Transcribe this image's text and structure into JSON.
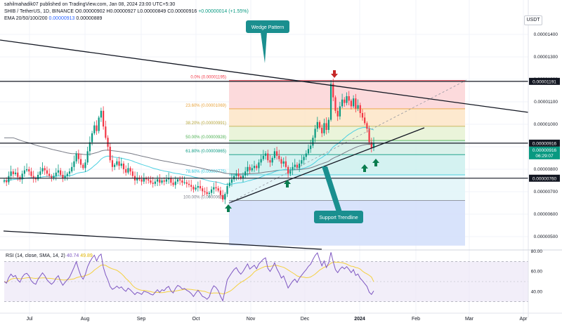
{
  "header": {
    "published": "sahilmahadik07 published on TradingView.com, Jan 08, 2024 23:00 UTC+5:30",
    "symbol": "SHIB / TetherUS, 1D, BINANCE",
    "ohlc": "O0.00000902 H0.00000927 L0.00000849 C0.00000916",
    "change": "+0.00000014 (+1.55%)",
    "ema_label": "EMA 20/50/100/200",
    "ema_v1": "0.00000913",
    "ema_v2": "0.00000889"
  },
  "quote_currency": "USDT",
  "colors": {
    "up": "#089981",
    "down": "#f23645",
    "ema_cyan": "#4dd0e1",
    "ema_gray": "#787b86",
    "callout": "#1a8f8f",
    "arrow_green": "#0a7d4f",
    "arrow_red": "#c62828",
    "rsi_line": "#7e57c2",
    "rsi_ma": "#f4d03f"
  },
  "callouts": {
    "wedge": "Wedge Pattern",
    "support": "Support Trendline"
  },
  "fib_labels": [
    {
      "text": "0.0% (0.00001195)",
      "price": 11.95
    },
    {
      "text": "23.60% (0.00001069)",
      "price": 10.69
    },
    {
      "text": "38.20% (0.00000991)",
      "price": 9.91
    },
    {
      "text": "50.00% (0.00000928)",
      "price": 9.28
    },
    {
      "text": "61.80% (0.00000865)",
      "price": 8.65
    },
    {
      "text": "78.60% (0.00000775)",
      "price": 7.75
    },
    {
      "text": "100.00% (0.00000661)",
      "price": 6.61
    }
  ],
  "price_badges": [
    {
      "text": "0.00001191",
      "price": 11.91
    },
    {
      "text": "0.00000916",
      "price": 9.16
    },
    {
      "text": "0.00000760",
      "price": 7.6
    }
  ],
  "last_price_badge": {
    "price": "0.00000916",
    "countdown": "06:29:07"
  },
  "rsi_legend": {
    "label": "RSI (14, close, SMA, 14, 2)",
    "v1": "40.74",
    "v2": "49.89"
  },
  "chart_data": {
    "type": "candlestick",
    "title": "SHIB / TetherUS, 1D, BINANCE",
    "price_unit": "1e-8 USDT (axis labels show 0.000000XX)",
    "ylim": [
      4.6,
      15.0
    ],
    "ytick_values": [
      14.0,
      13.0,
      12.0,
      11.0,
      10.0,
      9.0,
      8.0,
      7.0,
      6.0,
      5.0
    ],
    "ytick_labels": [
      "0.00001400",
      "0.00001300",
      "0.00001200",
      "0.00001100",
      "0.00001000",
      "0.00000900",
      "0.00000800",
      "0.00000700",
      "0.00000600",
      "0.00000500"
    ],
    "xtick_labels": [
      "Jul",
      "Aug",
      "Sep",
      "Oct",
      "Nov",
      "Dec",
      "2024",
      "Feb",
      "Mar",
      "Apr"
    ],
    "candles_close": [
      7.5,
      7.42,
      7.7,
      7.9,
      7.78,
      7.85,
      7.65,
      7.55,
      7.8,
      7.95,
      8.0,
      7.9,
      7.7,
      7.6,
      7.55,
      7.75,
      7.9,
      8.05,
      7.95,
      7.8,
      7.7,
      7.62,
      7.7,
      7.85,
      7.95,
      7.75,
      7.6,
      7.7,
      7.8,
      7.9,
      8.1,
      8.35,
      8.7,
      8.45,
      8.2,
      8.05,
      8.3,
      8.8,
      9.2,
      9.6,
      9.95,
      9.7,
      10.3,
      10.6,
      9.9,
      9.4,
      9.0,
      8.4,
      8.1,
      8.2,
      8.35,
      8.15,
      8.25,
      8.0,
      7.85,
      8.05,
      7.9,
      7.7,
      7.5,
      7.62,
      7.55,
      7.45,
      7.6,
      7.55,
      7.5,
      7.4,
      7.35,
      7.45,
      7.55,
      7.4,
      7.5,
      7.45,
      7.55,
      7.6,
      7.4,
      7.3,
      7.45,
      7.55,
      7.5,
      7.4,
      7.42,
      7.35,
      7.3,
      7.22,
      7.1,
      7.18,
      7.25,
      7.15,
      7.02,
      6.98,
      6.9,
      6.95,
      7.1,
      7.2,
      7.15,
      7.05,
      6.85,
      6.65,
      6.9,
      7.25,
      7.4,
      7.55,
      7.7,
      7.8,
      7.68,
      7.6,
      7.72,
      7.9,
      8.1,
      7.95,
      8.05,
      8.15,
      8.05,
      8.3,
      8.45,
      8.6,
      8.7,
      8.4,
      8.3,
      8.5,
      8.8,
      8.6,
      8.45,
      8.25,
      8.35,
      8.1,
      7.8,
      7.95,
      8.1,
      8.2,
      8.05,
      8.25,
      8.4,
      8.55,
      8.7,
      8.9,
      9.05,
      9.4,
      9.8,
      10.1,
      9.85,
      9.6,
      10.05,
      9.75,
      10.2,
      11.8,
      11.2,
      10.6,
      10.35,
      10.8,
      11.1,
      10.95,
      11.25,
      11.05,
      10.8,
      11.15,
      10.7,
      10.85,
      10.5,
      10.3,
      10.05,
      9.8,
      9.2,
      8.95,
      9.16
    ],
    "levels": {
      "resistance": 11.91,
      "mid_support": 9.16,
      "support": 7.6
    },
    "fibonacci": {
      "0.0%": 11.95,
      "23.6%": 10.69,
      "38.2%": 9.91,
      "50.0%": 9.28,
      "61.8%": 8.65,
      "78.6%": 7.75,
      "100.0%": 6.61
    },
    "rsi": {
      "ylim": [
        20,
        80
      ],
      "ytick_values": [
        80,
        60,
        40
      ],
      "ytick_labels": [
        "80.00",
        "60.00",
        "40.00"
      ],
      "latest": 40.74,
      "sma": 49.89
    }
  }
}
